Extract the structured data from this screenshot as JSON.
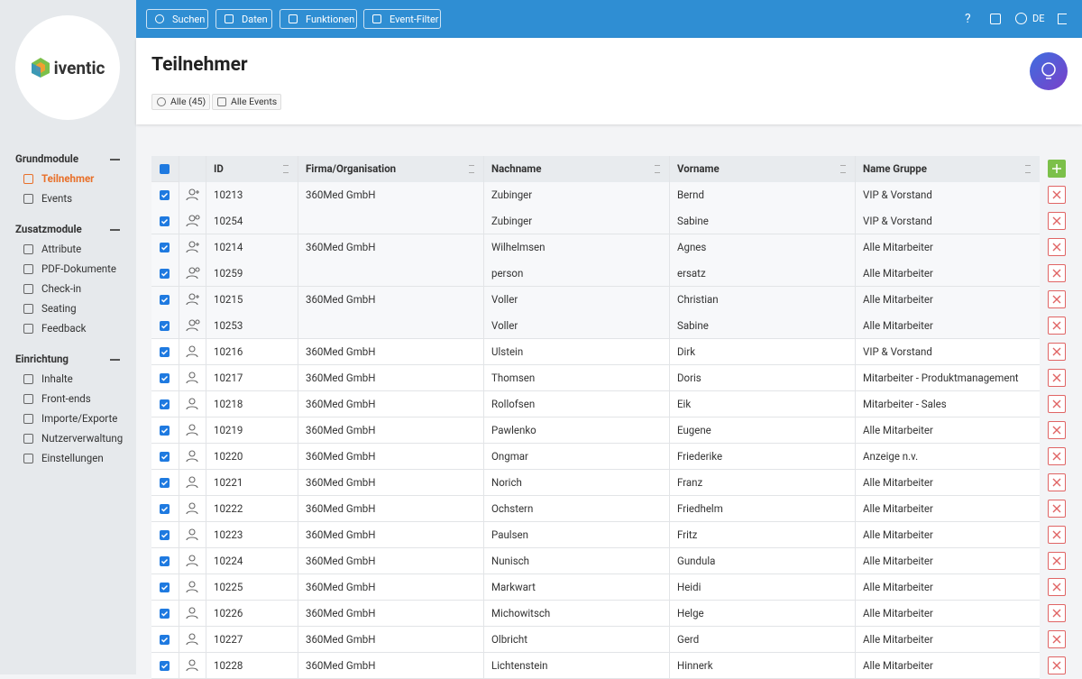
{
  "sidebar": {
    "logo": "iventic",
    "sections": [
      {
        "title": "Grundmodule",
        "items": [
          "Teilnehmer",
          "Events"
        ]
      },
      {
        "title": "Zusatzmodule",
        "items": [
          "Attribute",
          "PDF-Dokumente",
          "Check-in",
          "Seating",
          "Feedback"
        ]
      },
      {
        "title": "Einrichtung",
        "items": [
          "Inhalte",
          "Front-ends",
          "Importe/Exporte",
          "Nutzerverwaltung",
          "Einstellungen"
        ]
      }
    ]
  },
  "toolbar": {
    "buttons": [
      "Suchen",
      "Daten",
      "Funktionen",
      "Event-Filter"
    ],
    "help": "?",
    "language": "DE"
  },
  "header": {
    "title": "Teilnehmer",
    "filters": [
      "Alle (45)",
      "Alle Events"
    ]
  },
  "table": {
    "columns": [
      "ID",
      "Firma/Organisation",
      "Nachname",
      "Vorname",
      "Name Gruppe"
    ],
    "rows": [
      [
        "10213",
        "360Med GmbH",
        "Zubinger",
        "Bernd",
        "VIP & Vorstand"
      ],
      [
        "10254",
        null,
        "Zubinger",
        "Sabine",
        "VIP & Vorstand"
      ],
      [
        "10214",
        "360Med GmbH",
        "Wilhelmsen",
        "Agnes",
        "Alle Mitarbeiter"
      ],
      [
        "10259",
        null,
        "person",
        "ersatz",
        "Alle Mitarbeiter"
      ],
      [
        "10215",
        "360Med GmbH",
        "Voller",
        "Christian",
        "Alle Mitarbeiter"
      ],
      [
        "10253",
        null,
        "Voller",
        "Sabine",
        "Alle Mitarbeiter"
      ],
      [
        "10216",
        "360Med GmbH",
        "Ulstein",
        "Dirk",
        "VIP & Vorstand"
      ],
      [
        "10217",
        "360Med GmbH",
        "Thomsen",
        "Doris",
        "Mitarbeiter - Produktmanagement"
      ],
      [
        "10218",
        "360Med GmbH",
        "Rollofsen",
        "Eik",
        "Mitarbeiter - Sales"
      ],
      [
        "10219",
        "360Med GmbH",
        "Pawlenko",
        "Eugene",
        "Alle Mitarbeiter"
      ],
      [
        "10220",
        "360Med GmbH",
        "Ongmar",
        "Friederike",
        "Anzeige n.v."
      ],
      [
        "10221",
        "360Med GmbH",
        "Norich",
        "Franz",
        "Alle Mitarbeiter"
      ],
      [
        "10222",
        "360Med GmbH",
        "Ochstern",
        "Friedhelm",
        "Alle Mitarbeiter"
      ],
      [
        "10223",
        "360Med GmbH",
        "Paulsen",
        "Fritz",
        "Alle Mitarbeiter"
      ],
      [
        "10224",
        "360Med GmbH",
        "Nunisch",
        "Gundula",
        "Alle Mitarbeiter"
      ],
      [
        "10225",
        "360Med GmbH",
        "Markwart",
        "Heidi",
        "Alle Mitarbeiter"
      ],
      [
        "10226",
        "360Med GmbH",
        "Michowitsch",
        "Helge",
        "Alle Mitarbeiter"
      ],
      [
        "10227",
        "360Med GmbH",
        "Olbricht",
        "Gerd",
        "Alle Mitarbeiter"
      ],
      [
        "10228",
        "360Med GmbH",
        "Lichtenstein",
        "Hinnerk",
        "Alle Mitarbeiter"
      ]
    ]
  }
}
